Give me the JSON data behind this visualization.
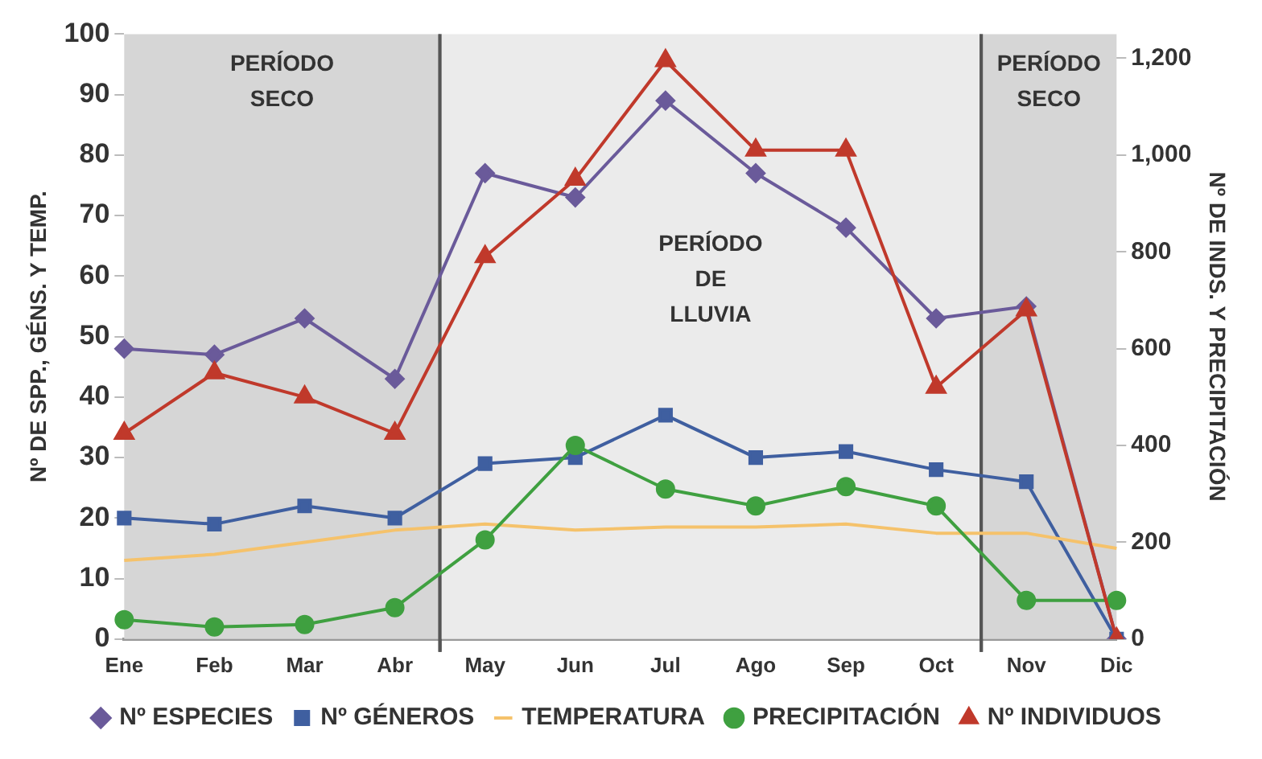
{
  "chart_data": {
    "type": "line",
    "categories": [
      "Ene",
      "Feb",
      "Mar",
      "Abr",
      "May",
      "Jun",
      "Jul",
      "Ago",
      "Sep",
      "Oct",
      "Nov",
      "Dic"
    ],
    "ylabel": "Nº DE SPP., GÉNS. Y TEMP.",
    "y2label": "Nº DE INDS. Y PRECIPITACIÓN",
    "ylim": [
      0,
      100
    ],
    "yticks": [
      0,
      10,
      20,
      30,
      40,
      50,
      60,
      70,
      80,
      90,
      100
    ],
    "y2lim": [
      0,
      1250
    ],
    "y2ticks": [
      0,
      200,
      400,
      600,
      800,
      {
        "value": 1000,
        "label": "1,000"
      },
      {
        "value": 1200,
        "label": "1,200"
      }
    ],
    "grid": false,
    "legend": "bottom",
    "bands": [
      {
        "axis": "x",
        "from": "Ene",
        "to": "Abr",
        "label": "PERÍODO SECO",
        "color": "#d6d6d6"
      },
      {
        "axis": "x",
        "from": "May",
        "to": "Oct",
        "label": "PERÍODO DE LLUVIA",
        "color": "#ebebeb"
      },
      {
        "axis": "x",
        "from": "Nov",
        "to": "Dic",
        "label": "PERÍODO SECO",
        "color": "#d6d6d6"
      }
    ],
    "series": [
      {
        "name": "Nº ESPECIES",
        "color": "#6a5a9a",
        "marker": "diamond",
        "values": [
          48,
          47,
          53,
          43,
          77,
          73,
          89,
          77,
          68,
          53,
          55,
          0
        ]
      },
      {
        "name": "Nº GÉNEROS",
        "color": "#3f5fa0",
        "marker": "square",
        "values": [
          20,
          19,
          22,
          20,
          29,
          30,
          37,
          30,
          31,
          28,
          26,
          0
        ]
      },
      {
        "name": "TEMPERATURA",
        "color": "#f5c26b",
        "marker": "none",
        "values": [
          13,
          14,
          16,
          18,
          19,
          18,
          18.5,
          18.5,
          19,
          17.5,
          17.5,
          15
        ]
      },
      {
        "name": "PRECIPITACIÓN",
        "color": "#3fa040",
        "marker": "circle",
        "axis": "y2",
        "values": [
          40,
          25,
          30,
          65,
          205,
          400,
          310,
          275,
          315,
          275,
          80,
          80
        ]
      },
      {
        "name": "Nº INDIVIDUOS",
        "color": "#c0392b",
        "marker": "triangle",
        "axis": "y2",
        "values": [
          425,
          550,
          500,
          425,
          790,
          950,
          1195,
          1010,
          1010,
          520,
          680,
          0
        ]
      }
    ]
  }
}
